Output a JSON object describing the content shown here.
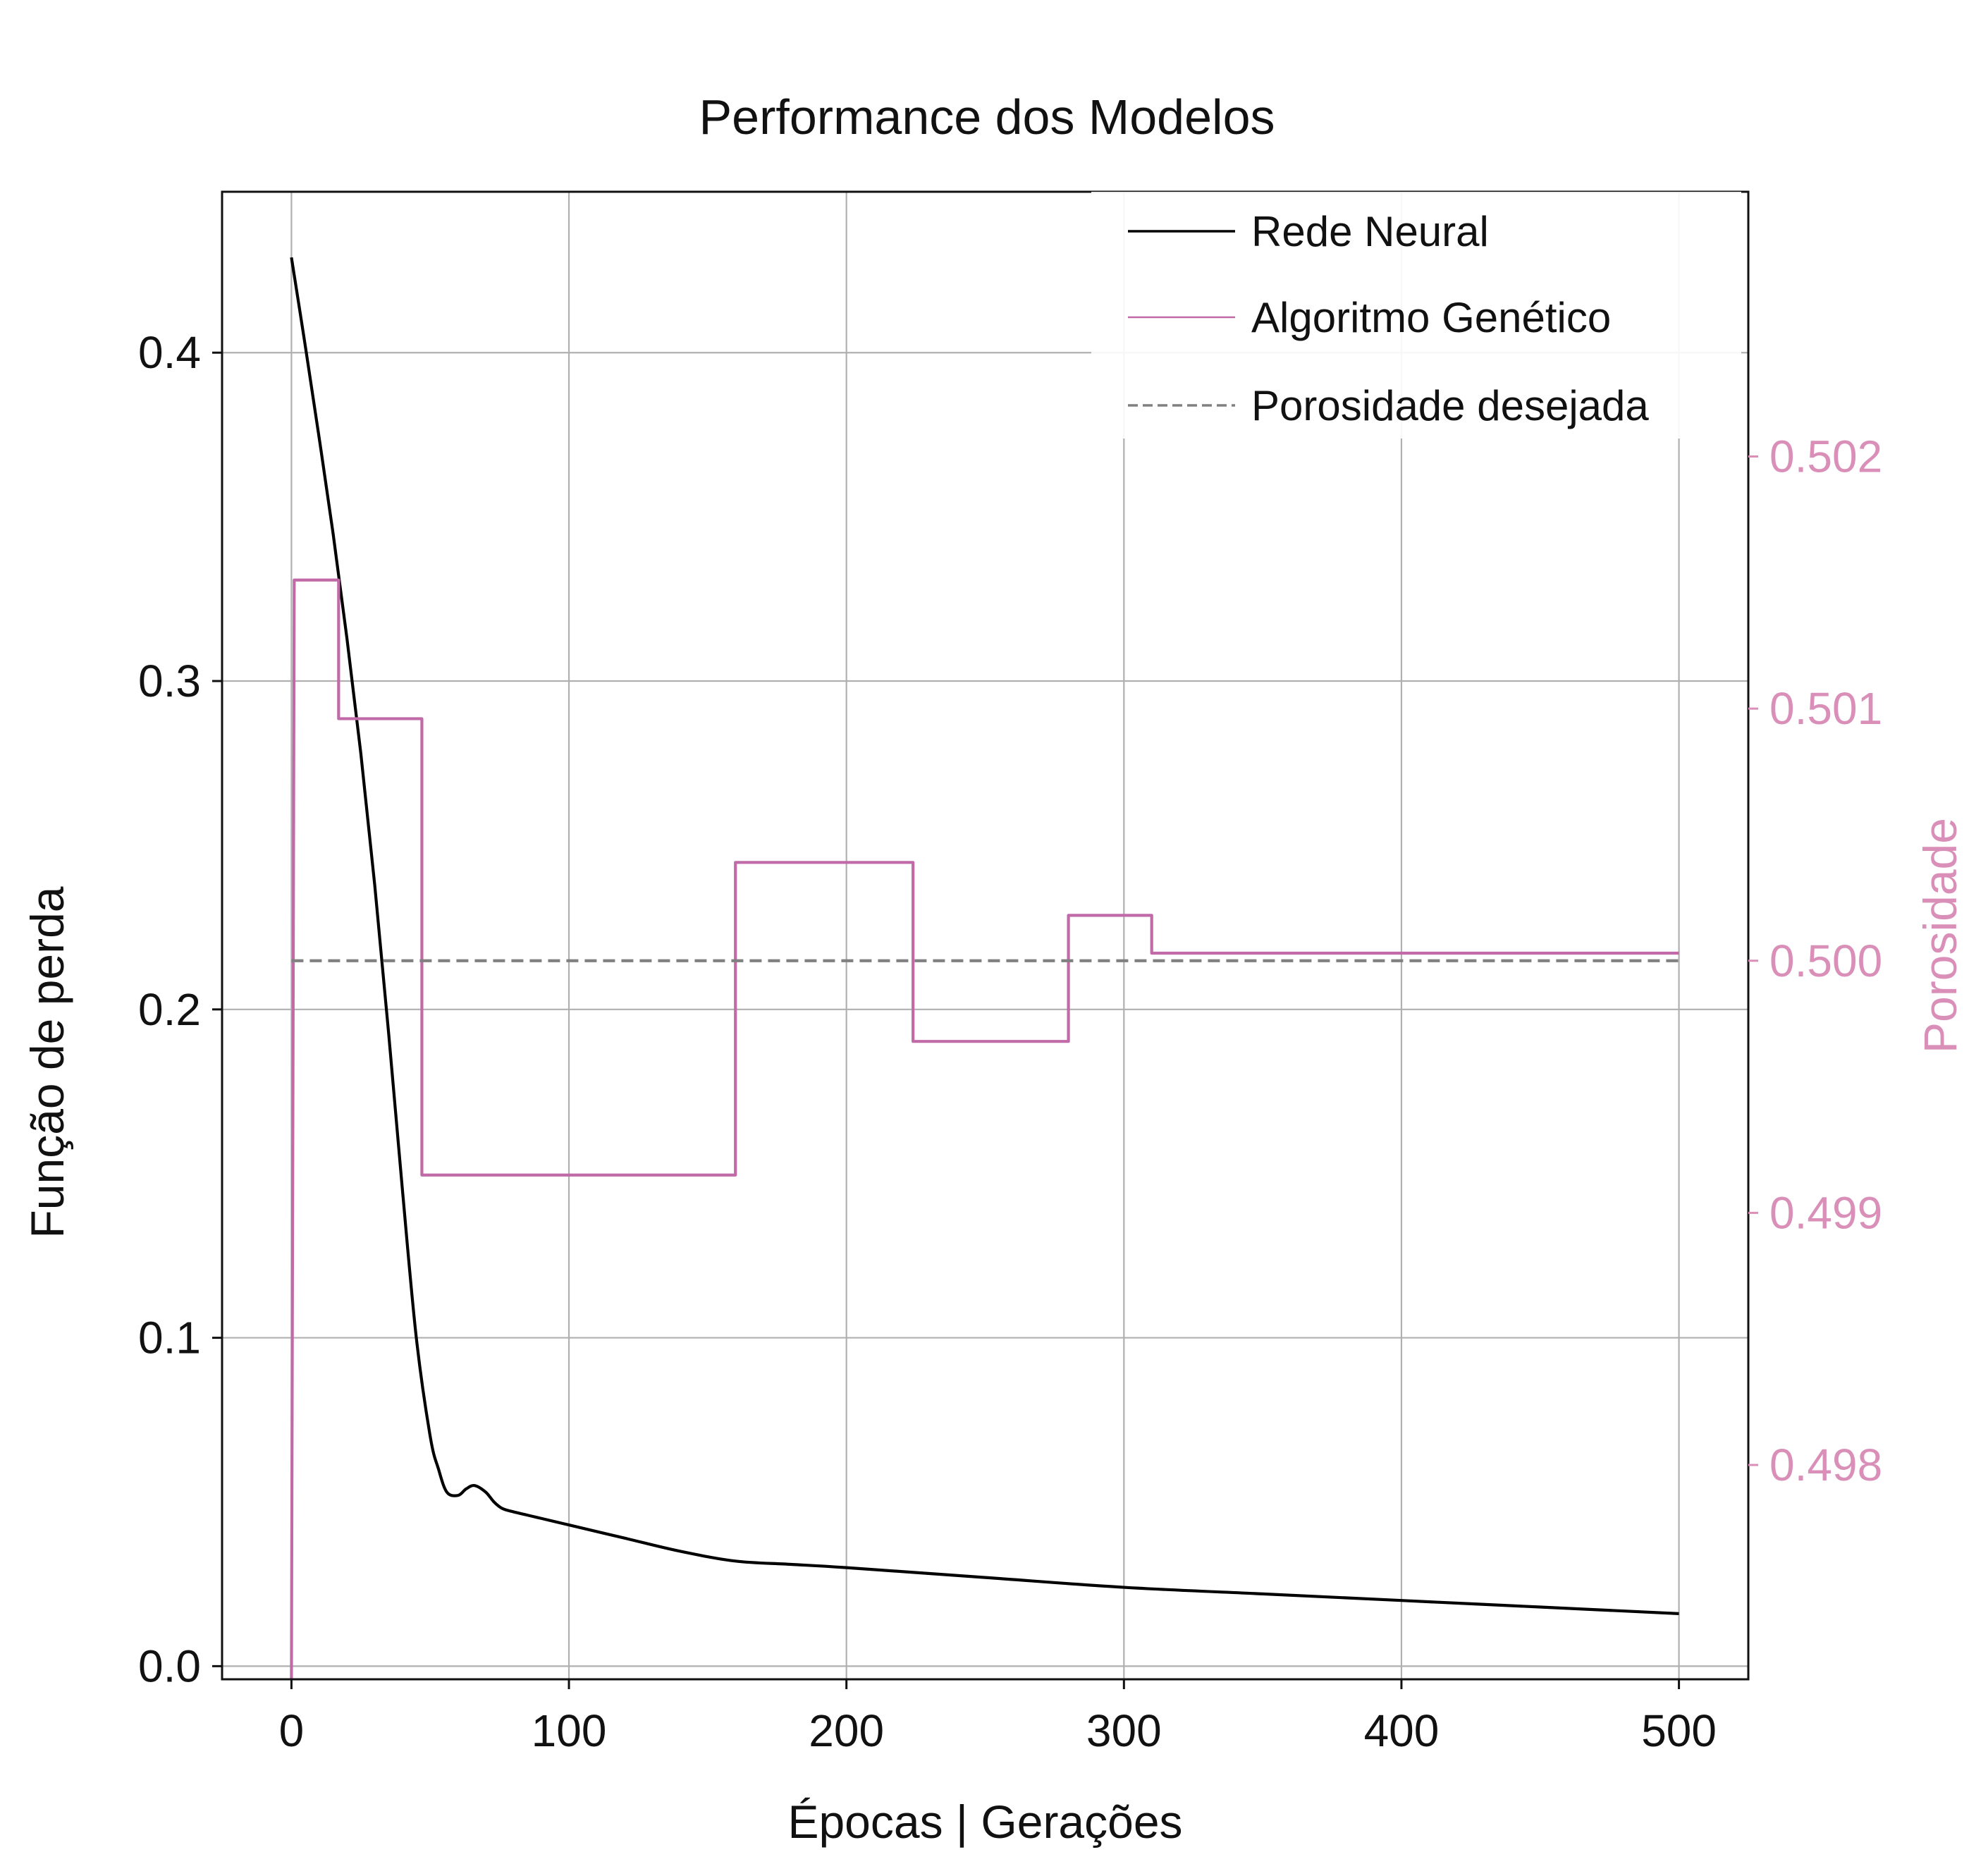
{
  "chart_data": {
    "type": "line",
    "title": "Performance dos Modelos",
    "xlabel": "Épocas | Gerações",
    "ylabel": "Função de perda",
    "y2label": "Porosidade",
    "xlim": [
      -25,
      525
    ],
    "ylim": [
      -0.004,
      0.449
    ],
    "y2lim": [
      0.49715,
      0.50305
    ],
    "xticks": [
      "0",
      "100",
      "200",
      "300",
      "400",
      "500"
    ],
    "yticks": [
      "0.0",
      "0.1",
      "0.2",
      "0.3",
      "0.4"
    ],
    "y2ticks": [
      "0.498",
      "0.499",
      "0.500",
      "0.501",
      "0.502"
    ],
    "grid": true,
    "legend_position": "top-right",
    "colors": {
      "rede": "#000000",
      "algoritmo": "#c06aa8",
      "porosidade": "#808080",
      "y2axis": "#d98fb8"
    },
    "series": [
      {
        "name": "Rede Neural",
        "axis": "left",
        "style": "solid",
        "x": [
          0,
          5,
          10,
          15,
          20,
          25,
          30,
          35,
          40,
          45,
          50,
          53,
          56,
          60,
          63,
          66,
          70,
          73,
          76,
          80,
          85,
          90,
          100,
          120,
          140,
          160,
          180,
          200,
          250,
          300,
          350,
          400,
          450,
          500
        ],
        "y": [
          0.429,
          0.402,
          0.374,
          0.345,
          0.313,
          0.278,
          0.238,
          0.193,
          0.145,
          0.1,
          0.07,
          0.06,
          0.053,
          0.052,
          0.054,
          0.055,
          0.053,
          0.05,
          0.048,
          0.047,
          0.046,
          0.045,
          0.043,
          0.039,
          0.035,
          0.032,
          0.031,
          0.03,
          0.027,
          0.024,
          0.022,
          0.02,
          0.018,
          0.016
        ]
      },
      {
        "name": "Algoritmo Genético",
        "axis": "right",
        "style": "step",
        "x": [
          0,
          1,
          17,
          17,
          47,
          47,
          160,
          160,
          224,
          224,
          280,
          280,
          310,
          310,
          500
        ],
        "y": [
          0.49715,
          0.50151,
          0.50151,
          0.50096,
          0.50096,
          0.49915,
          0.49915,
          0.50039,
          0.50039,
          0.49968,
          0.49968,
          0.50018,
          0.50018,
          0.50003,
          0.50003
        ]
      },
      {
        "name": "Porosidade desejada",
        "axis": "right",
        "style": "dashed",
        "x": [
          0,
          500
        ],
        "y": [
          0.5,
          0.5
        ]
      }
    ]
  }
}
